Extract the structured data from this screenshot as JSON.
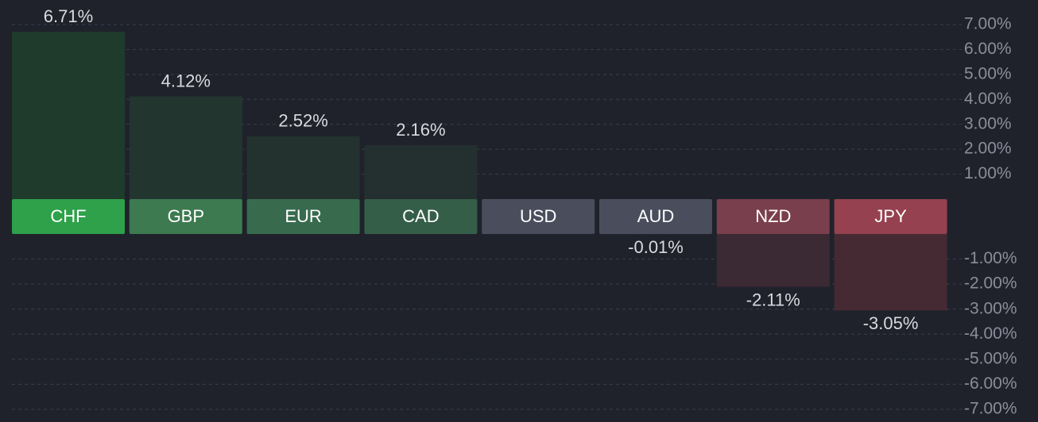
{
  "chart_data": {
    "type": "bar",
    "categories": [
      "CHF",
      "GBP",
      "EUR",
      "CAD",
      "USD",
      "AUD",
      "NZD",
      "JPY"
    ],
    "values": [
      6.71,
      4.12,
      2.52,
      2.16,
      0,
      -0.01,
      -2.11,
      -3.05
    ],
    "value_labels": [
      "6.71%",
      "4.12%",
      "2.52%",
      "2.16%",
      null,
      "-0.01%",
      "-2.11%",
      "-3.05%"
    ],
    "label_colors": [
      "#2ea14a",
      "#3d7a50",
      "#386b4e",
      "#355e49",
      "#4a4d5c",
      "#4a4d5c",
      "#7a3f4c",
      "#95414f"
    ],
    "bar_colors": [
      "#1f3b2b",
      "#22352f",
      "#23312f",
      "#23302f",
      "#2a2d38",
      "#2a2d38",
      "#3b2a33",
      "#452a33"
    ],
    "ylim": [
      -7,
      7
    ],
    "yticks": [
      {
        "value": 7,
        "label": "7.00%"
      },
      {
        "value": 6,
        "label": "6.00%"
      },
      {
        "value": 5,
        "label": "5.00%"
      },
      {
        "value": 4,
        "label": "4.00%"
      },
      {
        "value": 3,
        "label": "3.00%"
      },
      {
        "value": 2,
        "label": "2.00%"
      },
      {
        "value": 1,
        "label": "1.00%"
      },
      {
        "value": -1,
        "label": "-1.00%"
      },
      {
        "value": -2,
        "label": "-2.00%"
      },
      {
        "value": -3,
        "label": "-3.00%"
      },
      {
        "value": -4,
        "label": "-4.00%"
      },
      {
        "value": -5,
        "label": "-5.00%"
      },
      {
        "value": -6,
        "label": "-6.00%"
      },
      {
        "value": -7,
        "label": "-7.00%"
      }
    ],
    "grid": true
  }
}
